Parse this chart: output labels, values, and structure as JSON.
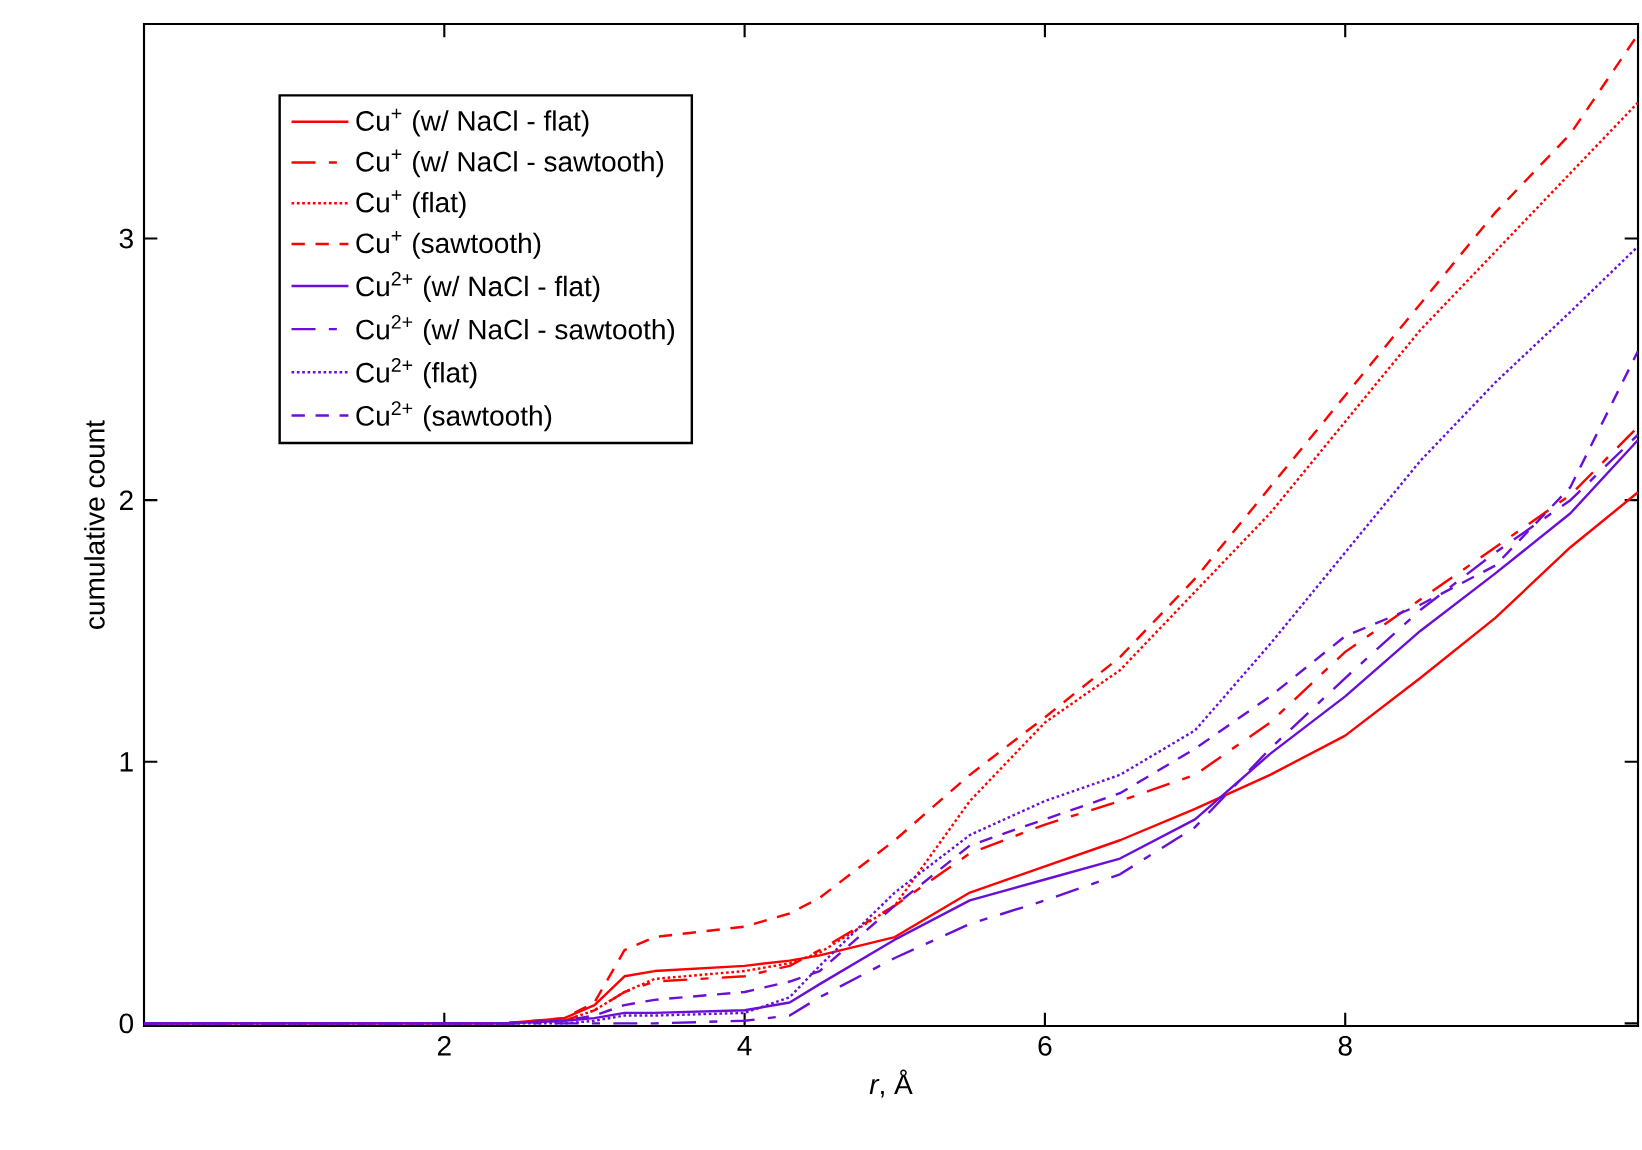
{
  "chart_data": {
    "type": "line",
    "xlabel": "*r*, Å",
    "ylabel": "cumulative count",
    "xlim": [
      0,
      9.95
    ],
    "ylim": [
      -0.01,
      3.82
    ],
    "xticks": [
      2,
      4,
      6,
      8
    ],
    "yticks": [
      0,
      1,
      2,
      3
    ],
    "grid": false,
    "legend": "top left",
    "x": [
      0,
      2.4,
      2.8,
      3.0,
      3.2,
      3.4,
      4.0,
      4.3,
      4.5,
      5.0,
      5.5,
      6.0,
      6.5,
      7.0,
      7.5,
      8.0,
      8.5,
      9.0,
      9.5,
      9.95
    ],
    "series": [
      {
        "name": "Cu$^{+}$ (w/ NaCl - flat)",
        "color": "#ff0000",
        "line_style": "solid",
        "values": [
          0,
          0,
          0.02,
          0.07,
          0.18,
          0.2,
          0.22,
          0.24,
          0.26,
          0.33,
          0.5,
          0.6,
          0.7,
          0.82,
          0.95,
          1.1,
          1.32,
          1.55,
          1.82,
          2.03
        ]
      },
      {
        "name": "Cu$^{+}$ (w/ NaCl - sawtooth)",
        "color": "#ff0000",
        "line_style": "dashdot",
        "values": [
          0,
          0,
          0.01,
          0.05,
          0.12,
          0.16,
          0.18,
          0.22,
          0.28,
          0.45,
          0.65,
          0.76,
          0.85,
          0.95,
          1.15,
          1.42,
          1.62,
          1.82,
          2.02,
          2.28
        ]
      },
      {
        "name": "Cu$^{+}$ (flat)",
        "color": "#ff0000",
        "line_style": "dotted",
        "values": [
          0,
          0,
          0.01,
          0.05,
          0.12,
          0.17,
          0.2,
          0.23,
          0.27,
          0.45,
          0.85,
          1.15,
          1.35,
          1.65,
          1.95,
          2.3,
          2.65,
          2.95,
          3.25,
          3.52
        ]
      },
      {
        "name": "Cu$^{+}$ (sawtooth)",
        "color": "#ff0000",
        "line_style": "dashed",
        "values": [
          0,
          0,
          0.02,
          0.08,
          0.28,
          0.33,
          0.37,
          0.42,
          0.48,
          0.7,
          0.95,
          1.17,
          1.4,
          1.7,
          2.05,
          2.4,
          2.75,
          3.1,
          3.4,
          3.78
        ]
      },
      {
        "name": "Cu$^{2+}$ (w/ NaCl - flat)",
        "color": "#6a0fd8",
        "line_style": "solid",
        "values": [
          0,
          0,
          0.01,
          0.02,
          0.04,
          0.04,
          0.05,
          0.08,
          0.15,
          0.32,
          0.47,
          0.55,
          0.63,
          0.78,
          1.03,
          1.25,
          1.5,
          1.72,
          1.95,
          2.23
        ]
      },
      {
        "name": "Cu$^{2+}$ (w/ NaCl - sawtooth)",
        "color": "#6a0fd8",
        "line_style": "dashdot",
        "values": [
          0,
          0,
          0,
          0,
          0,
          0,
          0.01,
          0.03,
          0.1,
          0.25,
          0.38,
          0.47,
          0.57,
          0.75,
          1.05,
          1.32,
          1.58,
          1.8,
          2.0,
          2.25
        ]
      },
      {
        "name": "Cu$^{2+}$ (flat)",
        "color": "#6a0fd8",
        "line_style": "dotted",
        "values": [
          0,
          0,
          0,
          0.01,
          0.03,
          0.03,
          0.04,
          0.1,
          0.22,
          0.5,
          0.72,
          0.85,
          0.95,
          1.12,
          1.45,
          1.8,
          2.15,
          2.45,
          2.72,
          2.97
        ]
      },
      {
        "name": "Cu$^{2+}$ (sawtooth)",
        "color": "#6a0fd8",
        "line_style": "dashed",
        "values": [
          0,
          0,
          0.01,
          0.03,
          0.07,
          0.09,
          0.12,
          0.16,
          0.2,
          0.45,
          0.68,
          0.78,
          0.88,
          1.05,
          1.25,
          1.48,
          1.6,
          1.75,
          2.05,
          2.57
        ]
      }
    ]
  }
}
